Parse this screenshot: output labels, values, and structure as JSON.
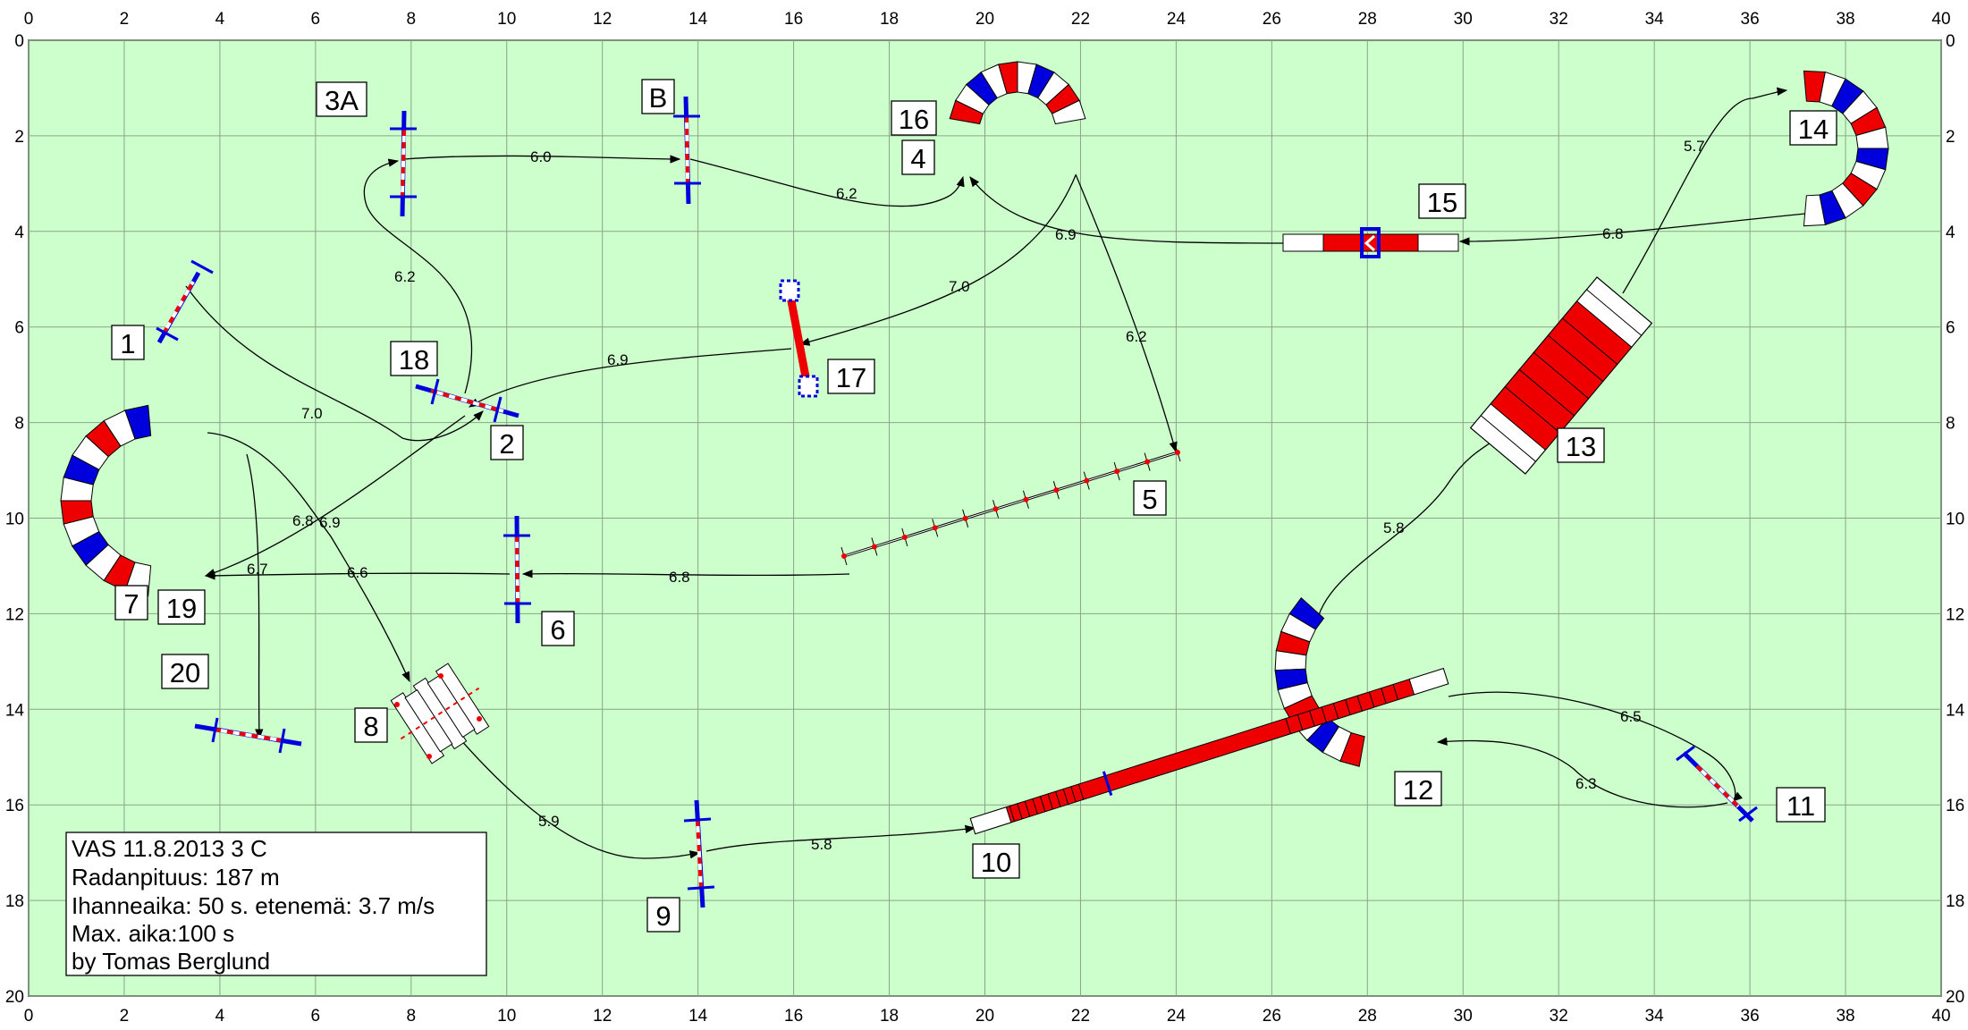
{
  "field": {
    "bg_color": "#ccffcc",
    "grid_color": "#8aa48a",
    "x_ticks": [
      "0",
      "2",
      "4",
      "6",
      "8",
      "10",
      "12",
      "14",
      "16",
      "18",
      "20",
      "22",
      "24",
      "26",
      "28",
      "30",
      "32",
      "34",
      "36",
      "38",
      "40"
    ],
    "y_ticks": [
      "0",
      "2",
      "4",
      "6",
      "8",
      "10",
      "12",
      "14",
      "16",
      "18",
      "20"
    ],
    "x_range": [
      0,
      40
    ],
    "y_range": [
      0,
      20
    ]
  },
  "colors": {
    "red": "#ee0000",
    "blue": "#0000dd",
    "white": "#ffffff"
  },
  "obstacle_labels": {
    "l1": "1",
    "l2": "2",
    "l3a": "3A",
    "lb": "B",
    "l4": "4",
    "l5": "5",
    "l6": "6",
    "l7": "7",
    "l8": "8",
    "l9": "9",
    "l10": "10",
    "l11": "11",
    "l12": "12",
    "l13": "13",
    "l14": "14",
    "l15": "15",
    "l16": "16",
    "l17": "17",
    "l18": "18",
    "l19": "19",
    "l20": "20"
  },
  "distances": {
    "d1": "7.0",
    "d2": "6.2",
    "d3": "6.0",
    "d4": "6.2",
    "d5": "6.2",
    "d6": "6.8",
    "d7": "6.6",
    "d8": "6.7",
    "d9": "6.8",
    "d10": "5.9",
    "d11": "5.8",
    "d12": "6.5",
    "d13": "6.3",
    "d14": "5.8",
    "d15": "5.7",
    "d16": "6.8",
    "d17": "6.9",
    "d18": "7.0",
    "d19": "6.9",
    "d20": "6.9"
  },
  "info": {
    "line1": "VAS 11.8.2013  3 C",
    "line2": "Radanpituus: 187 m",
    "line3": "Ihanneaika: 50 s.  etenemä: 3.7 m/s",
    "line4": "Max. aika:100 s",
    "line5": "by Tomas Berglund"
  }
}
